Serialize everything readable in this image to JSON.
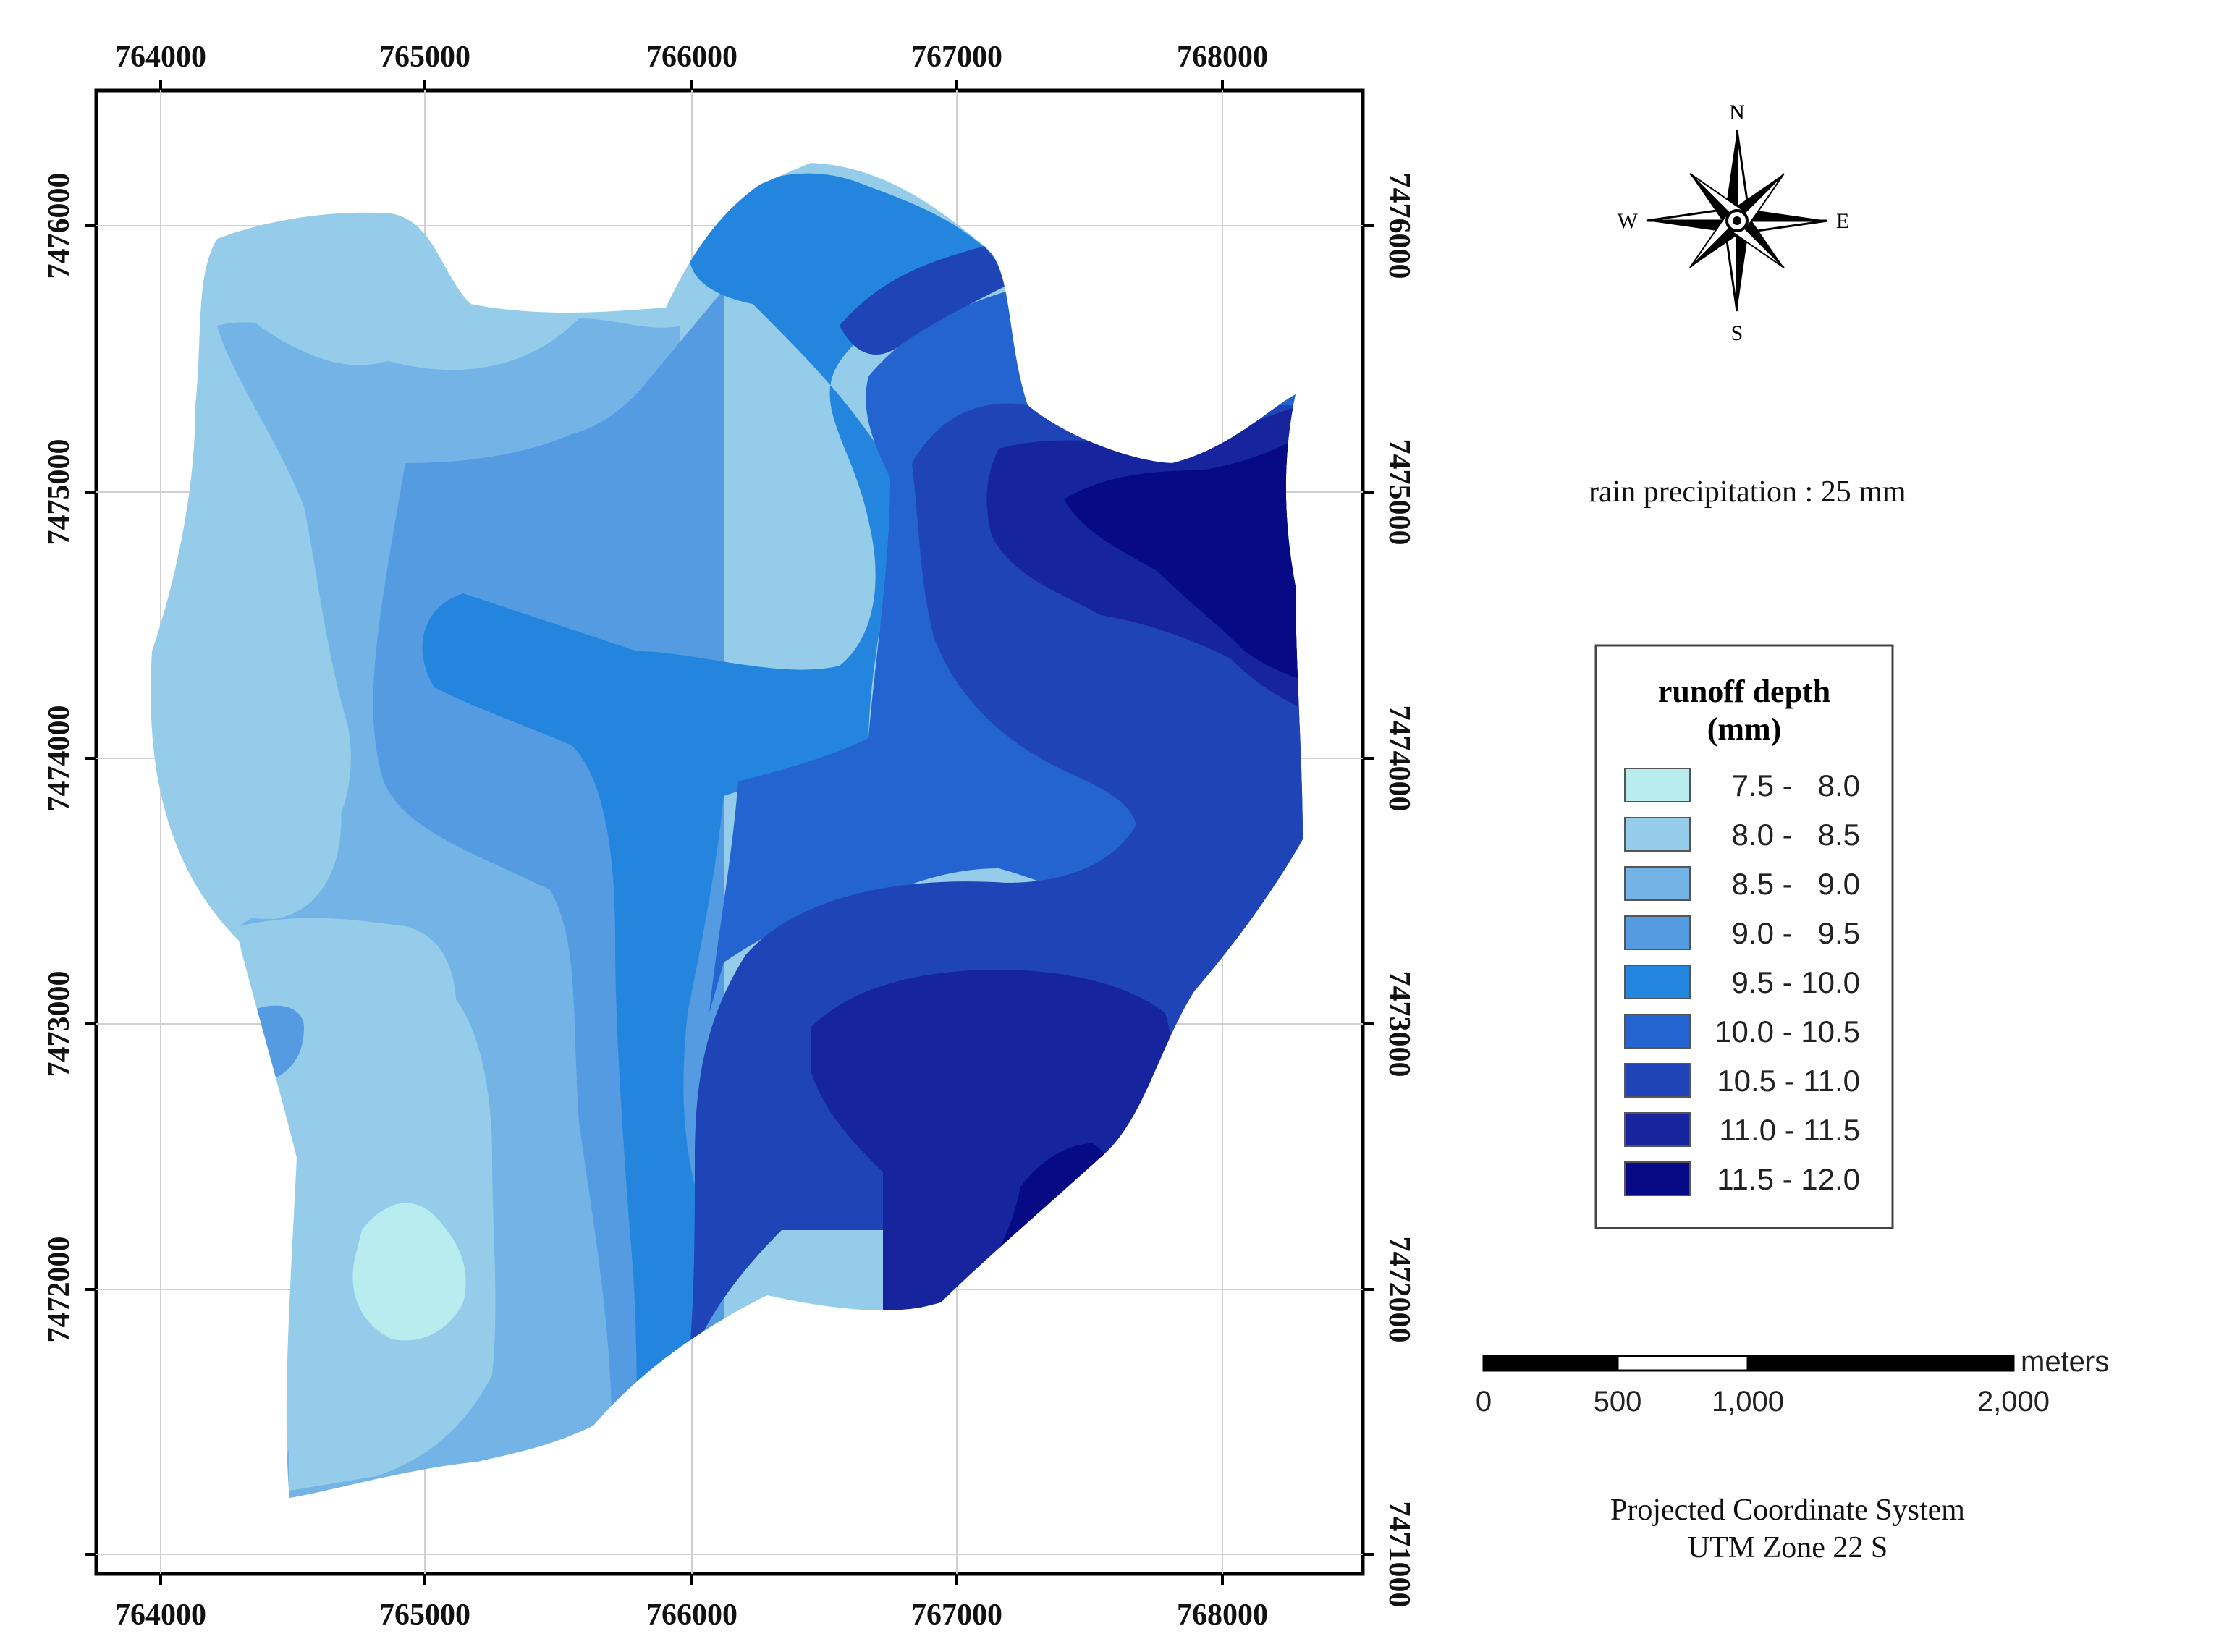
{
  "axes": {
    "x_ticks": [
      "764000",
      "765000",
      "766000",
      "767000",
      "768000"
    ],
    "y_ticks": [
      "7476000",
      "7475000",
      "7474000",
      "7473000",
      "7472000",
      "7471000"
    ]
  },
  "north_arrow": {
    "icon": "compass-rose-icon",
    "N": "N",
    "S": "S",
    "E": "E",
    "W": "W"
  },
  "annotation": "rain precipitation : 25 mm",
  "legend": {
    "title_line1": "runoff  depth",
    "title_line2": "(mm)",
    "classes": [
      {
        "label": "7.5 -   8.0",
        "color": "#b9ecef"
      },
      {
        "label": "8.0 -   8.5",
        "color": "#94cce9"
      },
      {
        "label": "8.5 -   9.0",
        "color": "#74b3e6"
      },
      {
        "label": "9.0 -   9.5",
        "color": "#549be2"
      },
      {
        "label": "9.5 - 10.0",
        "color": "#2485de"
      },
      {
        "label": "10.0 - 10.5",
        "color": "#2364d0"
      },
      {
        "label": "10.5 - 11.0",
        "color": "#1f44b8"
      },
      {
        "label": "11.0 - 11.5",
        "color": "#16259d"
      },
      {
        "label": "11.5 - 12.0",
        "color": "#060b85"
      }
    ]
  },
  "scale_bar": {
    "unit": "meters",
    "labels": [
      "0",
      "500",
      "1,000",
      "2,000"
    ]
  },
  "projection": {
    "line1": "Projected Coordinate System",
    "line2": "UTM Zone 22 S"
  }
}
